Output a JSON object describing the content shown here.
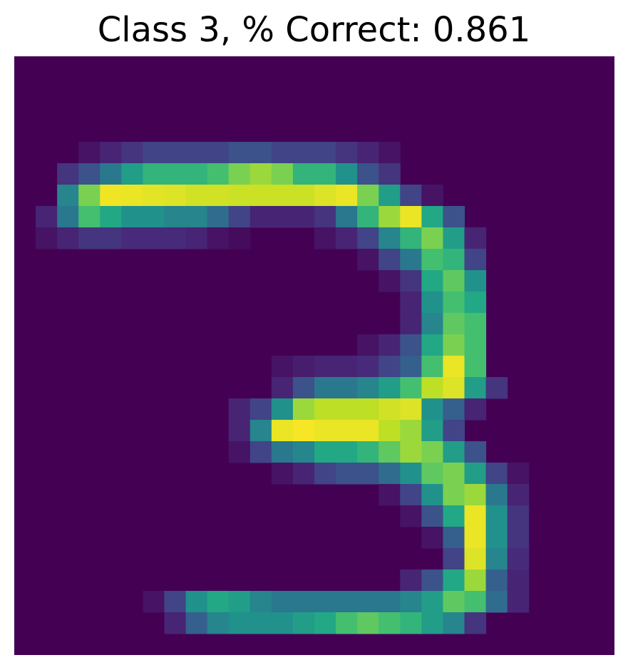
{
  "chart_data": {
    "type": "heatmap",
    "title": "Class 3, % Correct: 0.861",
    "rows": 28,
    "cols": 28,
    "axes_visible": false,
    "colormap": "viridis",
    "value_range": [
      0,
      1
    ],
    "background_color": "#440154",
    "cells": [
      {
        "r": 5,
        "c": 4,
        "v": 0.05
      },
      {
        "r": 5,
        "c": 5,
        "v": 0.1
      },
      {
        "r": 5,
        "c": 6,
        "v": 0.15
      },
      {
        "r": 5,
        "c": 7,
        "v": 0.2
      },
      {
        "r": 5,
        "c": 8,
        "v": 0.2
      },
      {
        "r": 5,
        "c": 9,
        "v": 0.2
      },
      {
        "r": 5,
        "c": 10,
        "v": 0.2
      },
      {
        "r": 5,
        "c": 11,
        "v": 0.25
      },
      {
        "r": 5,
        "c": 12,
        "v": 0.25
      },
      {
        "r": 5,
        "c": 13,
        "v": 0.2
      },
      {
        "r": 5,
        "c": 14,
        "v": 0.2
      },
      {
        "r": 5,
        "c": 15,
        "v": 0.2
      },
      {
        "r": 5,
        "c": 16,
        "v": 0.15
      },
      {
        "r": 5,
        "c": 17,
        "v": 0.1
      },
      {
        "r": 5,
        "c": 18,
        "v": 0.05
      },
      {
        "r": 6,
        "c": 3,
        "v": 0.15
      },
      {
        "r": 6,
        "c": 4,
        "v": 0.25
      },
      {
        "r": 6,
        "c": 5,
        "v": 0.4
      },
      {
        "r": 6,
        "c": 6,
        "v": 0.55
      },
      {
        "r": 6,
        "c": 7,
        "v": 0.65
      },
      {
        "r": 6,
        "c": 8,
        "v": 0.65
      },
      {
        "r": 6,
        "c": 9,
        "v": 0.65
      },
      {
        "r": 6,
        "c": 10,
        "v": 0.7
      },
      {
        "r": 6,
        "c": 11,
        "v": 0.8
      },
      {
        "r": 6,
        "c": 12,
        "v": 0.85
      },
      {
        "r": 6,
        "c": 13,
        "v": 0.8
      },
      {
        "r": 6,
        "c": 14,
        "v": 0.65
      },
      {
        "r": 6,
        "c": 15,
        "v": 0.65
      },
      {
        "r": 6,
        "c": 16,
        "v": 0.5
      },
      {
        "r": 6,
        "c": 17,
        "v": 0.25
      },
      {
        "r": 6,
        "c": 18,
        "v": 0.15
      },
      {
        "r": 7,
        "c": 3,
        "v": 0.45
      },
      {
        "r": 7,
        "c": 4,
        "v": 0.8
      },
      {
        "r": 7,
        "c": 5,
        "v": 0.98
      },
      {
        "r": 7,
        "c": 6,
        "v": 0.97
      },
      {
        "r": 7,
        "c": 7,
        "v": 0.96
      },
      {
        "r": 7,
        "c": 8,
        "v": 0.95
      },
      {
        "r": 7,
        "c": 9,
        "v": 0.93
      },
      {
        "r": 7,
        "c": 10,
        "v": 0.93
      },
      {
        "r": 7,
        "c": 11,
        "v": 0.92
      },
      {
        "r": 7,
        "c": 12,
        "v": 0.92
      },
      {
        "r": 7,
        "c": 13,
        "v": 0.92
      },
      {
        "r": 7,
        "c": 14,
        "v": 0.92
      },
      {
        "r": 7,
        "c": 15,
        "v": 0.95
      },
      {
        "r": 7,
        "c": 16,
        "v": 0.97
      },
      {
        "r": 7,
        "c": 17,
        "v": 0.8
      },
      {
        "r": 7,
        "c": 18,
        "v": 0.55
      },
      {
        "r": 7,
        "c": 19,
        "v": 0.2
      },
      {
        "r": 7,
        "c": 20,
        "v": 0.05
      },
      {
        "r": 8,
        "c": 2,
        "v": 0.1
      },
      {
        "r": 8,
        "c": 3,
        "v": 0.4
      },
      {
        "r": 8,
        "c": 4,
        "v": 0.7
      },
      {
        "r": 8,
        "c": 5,
        "v": 0.6
      },
      {
        "r": 8,
        "c": 6,
        "v": 0.5
      },
      {
        "r": 8,
        "c": 7,
        "v": 0.5
      },
      {
        "r": 8,
        "c": 8,
        "v": 0.45
      },
      {
        "r": 8,
        "c": 9,
        "v": 0.45
      },
      {
        "r": 8,
        "c": 10,
        "v": 0.35
      },
      {
        "r": 8,
        "c": 11,
        "v": 0.2
      },
      {
        "r": 8,
        "c": 12,
        "v": 0.1
      },
      {
        "r": 8,
        "c": 13,
        "v": 0.1
      },
      {
        "r": 8,
        "c": 14,
        "v": 0.1
      },
      {
        "r": 8,
        "c": 15,
        "v": 0.15
      },
      {
        "r": 8,
        "c": 16,
        "v": 0.4
      },
      {
        "r": 8,
        "c": 17,
        "v": 0.65
      },
      {
        "r": 8,
        "c": 18,
        "v": 0.85
      },
      {
        "r": 8,
        "c": 19,
        "v": 0.97
      },
      {
        "r": 8,
        "c": 20,
        "v": 0.6
      },
      {
        "r": 8,
        "c": 21,
        "v": 0.25
      },
      {
        "r": 9,
        "c": 2,
        "v": 0.05
      },
      {
        "r": 9,
        "c": 3,
        "v": 0.1
      },
      {
        "r": 9,
        "c": 4,
        "v": 0.15
      },
      {
        "r": 9,
        "c": 5,
        "v": 0.15
      },
      {
        "r": 9,
        "c": 6,
        "v": 0.12
      },
      {
        "r": 9,
        "c": 7,
        "v": 0.12
      },
      {
        "r": 9,
        "c": 8,
        "v": 0.12
      },
      {
        "r": 9,
        "c": 9,
        "v": 0.1
      },
      {
        "r": 9,
        "c": 10,
        "v": 0.05
      },
      {
        "r": 9,
        "c": 11,
        "v": 0.03
      },
      {
        "r": 9,
        "c": 15,
        "v": 0.05
      },
      {
        "r": 9,
        "c": 16,
        "v": 0.1
      },
      {
        "r": 9,
        "c": 17,
        "v": 0.2
      },
      {
        "r": 9,
        "c": 18,
        "v": 0.45
      },
      {
        "r": 9,
        "c": 19,
        "v": 0.65
      },
      {
        "r": 9,
        "c": 20,
        "v": 0.8
      },
      {
        "r": 9,
        "c": 21,
        "v": 0.55
      },
      {
        "r": 9,
        "c": 22,
        "v": 0.1
      },
      {
        "r": 10,
        "c": 17,
        "v": 0.05
      },
      {
        "r": 10,
        "c": 18,
        "v": 0.2
      },
      {
        "r": 10,
        "c": 19,
        "v": 0.4
      },
      {
        "r": 10,
        "c": 20,
        "v": 0.7
      },
      {
        "r": 10,
        "c": 21,
        "v": 0.65
      },
      {
        "r": 10,
        "c": 22,
        "v": 0.2
      },
      {
        "r": 11,
        "c": 18,
        "v": 0.05
      },
      {
        "r": 11,
        "c": 19,
        "v": 0.15
      },
      {
        "r": 11,
        "c": 20,
        "v": 0.6
      },
      {
        "r": 11,
        "c": 21,
        "v": 0.75
      },
      {
        "r": 11,
        "c": 22,
        "v": 0.5
      },
      {
        "r": 12,
        "c": 19,
        "v": 0.1
      },
      {
        "r": 12,
        "c": 20,
        "v": 0.5
      },
      {
        "r": 12,
        "c": 21,
        "v": 0.7
      },
      {
        "r": 12,
        "c": 22,
        "v": 0.6
      },
      {
        "r": 13,
        "c": 19,
        "v": 0.1
      },
      {
        "r": 13,
        "c": 20,
        "v": 0.45
      },
      {
        "r": 13,
        "c": 21,
        "v": 0.75
      },
      {
        "r": 13,
        "c": 22,
        "v": 0.7
      },
      {
        "r": 14,
        "c": 17,
        "v": 0.05
      },
      {
        "r": 14,
        "c": 18,
        "v": 0.1
      },
      {
        "r": 14,
        "c": 19,
        "v": 0.25
      },
      {
        "r": 14,
        "c": 20,
        "v": 0.6
      },
      {
        "r": 14,
        "c": 21,
        "v": 0.8
      },
      {
        "r": 14,
        "c": 22,
        "v": 0.7
      },
      {
        "r": 15,
        "c": 13,
        "v": 0.05
      },
      {
        "r": 15,
        "c": 14,
        "v": 0.08
      },
      {
        "r": 15,
        "c": 15,
        "v": 0.1
      },
      {
        "r": 15,
        "c": 16,
        "v": 0.1
      },
      {
        "r": 15,
        "c": 17,
        "v": 0.12
      },
      {
        "r": 15,
        "c": 18,
        "v": 0.2
      },
      {
        "r": 15,
        "c": 19,
        "v": 0.3
      },
      {
        "r": 15,
        "c": 20,
        "v": 0.7
      },
      {
        "r": 15,
        "c": 21,
        "v": 0.97
      },
      {
        "r": 15,
        "c": 22,
        "v": 0.7
      },
      {
        "r": 16,
        "c": 13,
        "v": 0.1
      },
      {
        "r": 16,
        "c": 14,
        "v": 0.25
      },
      {
        "r": 16,
        "c": 15,
        "v": 0.4
      },
      {
        "r": 16,
        "c": 16,
        "v": 0.4
      },
      {
        "r": 16,
        "c": 17,
        "v": 0.45
      },
      {
        "r": 16,
        "c": 18,
        "v": 0.55
      },
      {
        "r": 16,
        "c": 19,
        "v": 0.7
      },
      {
        "r": 16,
        "c": 20,
        "v": 0.9
      },
      {
        "r": 16,
        "c": 21,
        "v": 0.95
      },
      {
        "r": 16,
        "c": 22,
        "v": 0.55
      },
      {
        "r": 16,
        "c": 23,
        "v": 0.15
      },
      {
        "r": 17,
        "c": 11,
        "v": 0.1
      },
      {
        "r": 17,
        "c": 12,
        "v": 0.2
      },
      {
        "r": 17,
        "c": 13,
        "v": 0.5
      },
      {
        "r": 17,
        "c": 14,
        "v": 0.85
      },
      {
        "r": 17,
        "c": 15,
        "v": 0.9
      },
      {
        "r": 17,
        "c": 16,
        "v": 0.9
      },
      {
        "r": 17,
        "c": 17,
        "v": 0.9
      },
      {
        "r": 17,
        "c": 18,
        "v": 0.93
      },
      {
        "r": 17,
        "c": 19,
        "v": 0.95
      },
      {
        "r": 17,
        "c": 20,
        "v": 0.5
      },
      {
        "r": 17,
        "c": 21,
        "v": 0.3
      },
      {
        "r": 17,
        "c": 22,
        "v": 0.1
      },
      {
        "r": 18,
        "c": 11,
        "v": 0.1
      },
      {
        "r": 18,
        "c": 12,
        "v": 0.45
      },
      {
        "r": 18,
        "c": 13,
        "v": 0.97
      },
      {
        "r": 18,
        "c": 14,
        "v": 0.99
      },
      {
        "r": 18,
        "c": 15,
        "v": 0.97
      },
      {
        "r": 18,
        "c": 16,
        "v": 0.97
      },
      {
        "r": 18,
        "c": 17,
        "v": 0.97
      },
      {
        "r": 18,
        "c": 18,
        "v": 0.9
      },
      {
        "r": 18,
        "c": 19,
        "v": 0.85
      },
      {
        "r": 18,
        "c": 20,
        "v": 0.55
      },
      {
        "r": 18,
        "c": 21,
        "v": 0.2
      },
      {
        "r": 19,
        "c": 11,
        "v": 0.05
      },
      {
        "r": 19,
        "c": 12,
        "v": 0.2
      },
      {
        "r": 19,
        "c": 13,
        "v": 0.4
      },
      {
        "r": 19,
        "c": 14,
        "v": 0.45
      },
      {
        "r": 19,
        "c": 15,
        "v": 0.6
      },
      {
        "r": 19,
        "c": 16,
        "v": 0.6
      },
      {
        "r": 19,
        "c": 17,
        "v": 0.65
      },
      {
        "r": 19,
        "c": 18,
        "v": 0.75
      },
      {
        "r": 19,
        "c": 19,
        "v": 0.85
      },
      {
        "r": 19,
        "c": 20,
        "v": 0.8
      },
      {
        "r": 19,
        "c": 21,
        "v": 0.55
      },
      {
        "r": 19,
        "c": 22,
        "v": 0.25
      },
      {
        "r": 20,
        "c": 13,
        "v": 0.05
      },
      {
        "r": 20,
        "c": 14,
        "v": 0.1
      },
      {
        "r": 20,
        "c": 15,
        "v": 0.2
      },
      {
        "r": 20,
        "c": 16,
        "v": 0.25
      },
      {
        "r": 20,
        "c": 17,
        "v": 0.25
      },
      {
        "r": 20,
        "c": 18,
        "v": 0.35
      },
      {
        "r": 20,
        "c": 19,
        "v": 0.5
      },
      {
        "r": 20,
        "c": 20,
        "v": 0.75
      },
      {
        "r": 20,
        "c": 21,
        "v": 0.8
      },
      {
        "r": 20,
        "c": 22,
        "v": 0.55
      },
      {
        "r": 20,
        "c": 23,
        "v": 0.2
      },
      {
        "r": 20,
        "c": 24,
        "v": 0.05
      },
      {
        "r": 21,
        "c": 18,
        "v": 0.05
      },
      {
        "r": 21,
        "c": 19,
        "v": 0.2
      },
      {
        "r": 21,
        "c": 20,
        "v": 0.5
      },
      {
        "r": 21,
        "c": 21,
        "v": 0.8
      },
      {
        "r": 21,
        "c": 22,
        "v": 0.85
      },
      {
        "r": 21,
        "c": 23,
        "v": 0.4
      },
      {
        "r": 21,
        "c": 24,
        "v": 0.1
      },
      {
        "r": 22,
        "c": 19,
        "v": 0.05
      },
      {
        "r": 22,
        "c": 20,
        "v": 0.25
      },
      {
        "r": 22,
        "c": 21,
        "v": 0.6
      },
      {
        "r": 22,
        "c": 22,
        "v": 0.97
      },
      {
        "r": 22,
        "c": 23,
        "v": 0.5
      },
      {
        "r": 22,
        "c": 24,
        "v": 0.15
      },
      {
        "r": 23,
        "c": 20,
        "v": 0.05
      },
      {
        "r": 23,
        "c": 21,
        "v": 0.3
      },
      {
        "r": 23,
        "c": 22,
        "v": 0.97
      },
      {
        "r": 23,
        "c": 23,
        "v": 0.5
      },
      {
        "r": 23,
        "c": 24,
        "v": 0.15
      },
      {
        "r": 24,
        "c": 21,
        "v": 0.2
      },
      {
        "r": 24,
        "c": 22,
        "v": 0.95
      },
      {
        "r": 24,
        "c": 23,
        "v": 0.45
      },
      {
        "r": 24,
        "c": 24,
        "v": 0.12
      },
      {
        "r": 25,
        "c": 19,
        "v": 0.1
      },
      {
        "r": 25,
        "c": 20,
        "v": 0.25
      },
      {
        "r": 25,
        "c": 21,
        "v": 0.6
      },
      {
        "r": 25,
        "c": 22,
        "v": 0.85
      },
      {
        "r": 25,
        "c": 23,
        "v": 0.3
      },
      {
        "r": 25,
        "c": 24,
        "v": 0.1
      },
      {
        "r": 26,
        "c": 7,
        "v": 0.05
      },
      {
        "r": 26,
        "c": 8,
        "v": 0.2
      },
      {
        "r": 26,
        "c": 9,
        "v": 0.5
      },
      {
        "r": 26,
        "c": 10,
        "v": 0.6
      },
      {
        "r": 26,
        "c": 11,
        "v": 0.55
      },
      {
        "r": 26,
        "c": 12,
        "v": 0.45
      },
      {
        "r": 26,
        "c": 13,
        "v": 0.4
      },
      {
        "r": 26,
        "c": 14,
        "v": 0.4
      },
      {
        "r": 26,
        "c": 15,
        "v": 0.4
      },
      {
        "r": 26,
        "c": 16,
        "v": 0.4
      },
      {
        "r": 26,
        "c": 17,
        "v": 0.4
      },
      {
        "r": 26,
        "c": 18,
        "v": 0.4
      },
      {
        "r": 26,
        "c": 19,
        "v": 0.45
      },
      {
        "r": 26,
        "c": 20,
        "v": 0.55
      },
      {
        "r": 26,
        "c": 21,
        "v": 0.75
      },
      {
        "r": 26,
        "c": 22,
        "v": 0.7
      },
      {
        "r": 26,
        "c": 23,
        "v": 0.35
      },
      {
        "r": 26,
        "c": 24,
        "v": 0.1
      },
      {
        "r": 27,
        "c": 8,
        "v": 0.1
      },
      {
        "r": 27,
        "c": 9,
        "v": 0.3
      },
      {
        "r": 27,
        "c": 10,
        "v": 0.45
      },
      {
        "r": 27,
        "c": 11,
        "v": 0.5
      },
      {
        "r": 27,
        "c": 12,
        "v": 0.5
      },
      {
        "r": 27,
        "c": 13,
        "v": 0.5
      },
      {
        "r": 27,
        "c": 14,
        "v": 0.55
      },
      {
        "r": 27,
        "c": 15,
        "v": 0.6
      },
      {
        "r": 27,
        "c": 16,
        "v": 0.7
      },
      {
        "r": 27,
        "c": 17,
        "v": 0.75
      },
      {
        "r": 27,
        "c": 18,
        "v": 0.7
      },
      {
        "r": 27,
        "c": 19,
        "v": 0.65
      },
      {
        "r": 27,
        "c": 20,
        "v": 0.55
      },
      {
        "r": 27,
        "c": 21,
        "v": 0.45
      },
      {
        "r": 27,
        "c": 22,
        "v": 0.15
      }
    ]
  }
}
